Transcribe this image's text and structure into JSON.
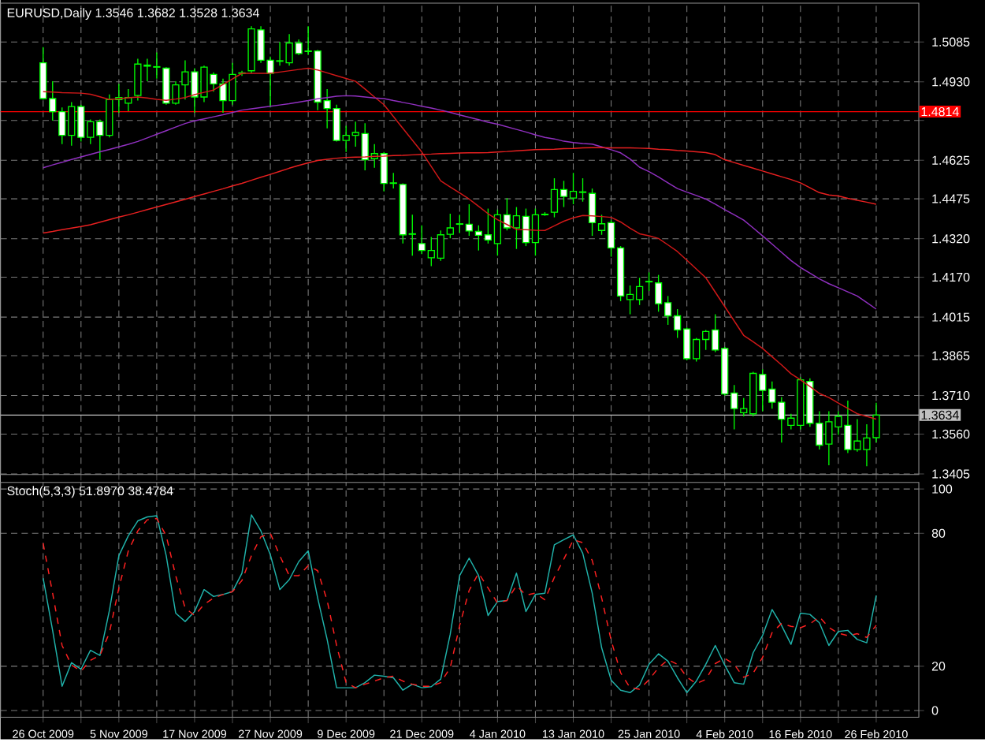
{
  "chart_data": [
    {
      "type": "candlestick",
      "title": "EURUSD,Daily 1.3546 1.3682 1.3528 1.3634",
      "color": "#00ff00",
      "categories": [
        null,
        null,
        null,
        null,
        null,
        null,
        null,
        null,
        null,
        null,
        null,
        null,
        null,
        null,
        null,
        null,
        null,
        null,
        null,
        null,
        null,
        null,
        null,
        null,
        null,
        null,
        null,
        null,
        null,
        null,
        null,
        null,
        null,
        null,
        null,
        null,
        null,
        null,
        null,
        null,
        null,
        null,
        null,
        null,
        null,
        null,
        null,
        null,
        null,
        null,
        null,
        null,
        null,
        null,
        null,
        null,
        null,
        null,
        null,
        null,
        null,
        null,
        null,
        null,
        null,
        null,
        null,
        null,
        null,
        null,
        null,
        null,
        null,
        null,
        null,
        null,
        null,
        null,
        null,
        null,
        null,
        null,
        null,
        null,
        null,
        null,
        null,
        null,
        null
      ],
      "ohlc": [
        [
          1.5004,
          1.5065,
          1.4861,
          1.4865
        ],
        [
          1.4865,
          1.4932,
          1.4779,
          1.4814
        ],
        [
          1.4814,
          1.483,
          1.4688,
          1.4722
        ],
        [
          1.4722,
          1.4851,
          1.4682,
          1.4834
        ],
        [
          1.4834,
          1.4841,
          1.4698,
          1.4714
        ],
        [
          1.4714,
          1.4784,
          1.4688,
          1.4775
        ],
        [
          1.4775,
          1.4784,
          1.4627,
          1.4722
        ],
        [
          1.4722,
          1.4881,
          1.4714,
          1.4861
        ],
        [
          1.4861,
          1.4922,
          1.481,
          1.4869
        ],
        [
          1.4847,
          1.4902,
          1.4816,
          1.4869
        ],
        [
          1.4877,
          1.502,
          1.4857,
          1.4999
        ],
        [
          1.4991,
          1.502,
          1.4932,
          1.4995
        ],
        [
          1.4987,
          1.5044,
          1.4942,
          1.4989
        ],
        [
          1.4983,
          1.4987,
          1.4841,
          1.4847
        ],
        [
          1.4847,
          1.4932,
          1.4841,
          1.4918
        ],
        [
          1.4918,
          1.5014,
          1.4861,
          1.4969
        ],
        [
          1.4969,
          1.4983,
          1.481,
          1.4871
        ],
        [
          1.4871,
          1.4993,
          1.4851,
          1.4987
        ],
        [
          1.4959,
          1.4967,
          1.4892,
          1.4922
        ],
        [
          1.4922,
          1.4942,
          1.481,
          1.4857
        ],
        [
          1.4857,
          1.5004,
          1.4841,
          1.4959
        ],
        [
          1.4963,
          1.4973,
          1.4953,
          1.4965
        ],
        [
          1.4973,
          1.5146,
          1.4963,
          1.5136
        ],
        [
          1.5132,
          1.5146,
          1.5004,
          1.5014
        ],
        [
          1.5014,
          1.5028,
          1.483,
          1.4963
        ],
        [
          1.501,
          1.5085,
          1.4993,
          1.5012
        ],
        [
          1.5004,
          1.5116,
          1.4993,
          1.5081
        ],
        [
          1.5081,
          1.5095,
          1.5034,
          1.504
        ],
        [
          1.5048,
          1.5146,
          1.5034,
          1.505
        ],
        [
          1.505,
          1.5054,
          1.482,
          1.4851
        ],
        [
          1.4857,
          1.4902,
          1.4749,
          1.4826
        ],
        [
          1.4826,
          1.4841,
          1.4698,
          1.4702
        ],
        [
          1.4702,
          1.4759,
          1.4657,
          1.4722
        ],
        [
          1.4722,
          1.4775,
          1.4678,
          1.4733
        ],
        [
          1.4729,
          1.4769,
          1.4586,
          1.4627
        ],
        [
          1.4631,
          1.4688,
          1.4596,
          1.4651
        ],
        [
          1.4651,
          1.4657,
          1.4504,
          1.4535
        ],
        [
          1.4535,
          1.4576,
          1.4515,
          1.4537
        ],
        [
          1.4531,
          1.4535,
          1.4301,
          1.4335
        ],
        [
          1.4337,
          1.4413,
          1.4254,
          1.4339
        ],
        [
          1.4301,
          1.4372,
          1.426,
          1.4274
        ],
        [
          1.4246,
          1.4327,
          1.4213,
          1.4274
        ],
        [
          1.4244,
          1.4352,
          1.4234,
          1.4335
        ],
        [
          1.4337,
          1.4417,
          1.4321,
          1.4362
        ],
        [
          1.4376,
          1.4413,
          1.4342,
          1.4378
        ],
        [
          1.4376,
          1.4454,
          1.4331,
          1.435
        ],
        [
          1.4348,
          1.4372,
          1.4274,
          1.4333
        ],
        [
          1.4335,
          1.4437,
          1.4301,
          1.4315
        ],
        [
          1.4301,
          1.4433,
          1.4254,
          1.4413
        ],
        [
          1.4413,
          1.4478,
          1.4352,
          1.4362
        ],
        [
          1.4362,
          1.4443,
          1.428,
          1.4409
        ],
        [
          1.4407,
          1.4437,
          1.4291,
          1.4305
        ],
        [
          1.4305,
          1.4437,
          1.4254,
          1.4413
        ],
        [
          1.4413,
          1.4423,
          1.4409,
          1.4415
        ],
        [
          1.4423,
          1.4555,
          1.4403,
          1.4511
        ],
        [
          1.4511,
          1.4545,
          1.4443,
          1.4484
        ],
        [
          1.4478,
          1.4576,
          1.4454,
          1.4504
        ],
        [
          1.45,
          1.4555,
          1.4464,
          1.4502
        ],
        [
          1.4496,
          1.4515,
          1.4331,
          1.4382
        ],
        [
          1.4352,
          1.4413,
          1.4335,
          1.4378
        ],
        [
          1.4382,
          1.4392,
          1.425,
          1.4284
        ],
        [
          1.4284,
          1.4291,
          1.4077,
          1.4097
        ],
        [
          1.4083,
          1.4138,
          1.4026,
          1.4103
        ],
        [
          1.4083,
          1.4168,
          1.4062,
          1.4134
        ],
        [
          1.4152,
          1.4189,
          1.4117,
          1.4154
        ],
        [
          1.4148,
          1.4179,
          1.4036,
          1.4067
        ],
        [
          1.4071,
          1.4097,
          1.3985,
          1.402
        ],
        [
          1.402,
          1.4046,
          1.3934,
          1.3965
        ],
        [
          1.3969,
          1.3975,
          1.3847,
          1.3853
        ],
        [
          1.3853,
          1.3934,
          1.3842,
          1.3928
        ],
        [
          1.3928,
          1.3965,
          1.3887,
          1.3959
        ],
        [
          1.3965,
          1.4026,
          1.3879,
          1.3887
        ],
        [
          1.3893,
          1.3899,
          1.371,
          1.3716
        ],
        [
          1.372,
          1.3751,
          1.3578,
          1.3659
        ],
        [
          1.3643,
          1.37,
          1.3629,
          1.3659
        ],
        [
          1.3639,
          1.3802,
          1.3629,
          1.3796
        ],
        [
          1.3792,
          1.3812,
          1.3649,
          1.373
        ],
        [
          1.3735,
          1.3765,
          1.3659,
          1.3684
        ],
        [
          1.3684,
          1.3704,
          1.3527,
          1.3618
        ],
        [
          1.3594,
          1.3639,
          1.3578,
          1.3622
        ],
        [
          1.3594,
          1.3781,
          1.3578,
          1.3771
        ],
        [
          1.3765,
          1.3777,
          1.3588,
          1.3602
        ],
        [
          1.3602,
          1.3649,
          1.35,
          1.3517
        ],
        [
          1.3521,
          1.3649,
          1.3439,
          1.3608
        ],
        [
          1.3588,
          1.3649,
          1.3557,
          1.3629
        ],
        [
          1.3594,
          1.369,
          1.3486,
          1.35
        ],
        [
          1.35,
          1.3618,
          1.3492,
          1.3533
        ],
        [
          1.35,
          1.3598,
          1.3435,
          1.3545
        ],
        [
          1.3546,
          1.3682,
          1.3528,
          1.3634
        ]
      ],
      "series": [
        {
          "type": "line",
          "color": "#d01818",
          "values": [
            1.4892,
            1.489,
            1.4888,
            1.4887,
            1.4886,
            1.4882,
            1.4872,
            1.4861,
            1.4864,
            1.4868,
            1.4871,
            1.4867,
            1.4862,
            1.4858,
            1.4863,
            1.4869,
            1.488,
            1.4889,
            1.4898,
            1.492,
            1.4941,
            1.4963,
            1.4963,
            1.4963,
            1.4963,
            1.4968,
            1.4973,
            1.4978,
            1.4983,
            1.4976,
            1.4965,
            1.4954,
            1.4943,
            1.4932,
            1.4902,
            1.4871,
            1.4841,
            1.4795,
            1.4749,
            1.4703,
            1.4657,
            1.4601,
            1.4545,
            1.4521,
            1.4498,
            1.4474,
            1.4446,
            1.4417,
            1.4394,
            1.4375,
            1.4356,
            1.4355,
            1.4353,
            1.4352,
            1.437,
            1.4388,
            1.4401,
            1.441,
            1.4409,
            1.4406,
            1.4403,
            1.4385,
            1.4361,
            1.4339,
            1.4331,
            1.4321,
            1.4296,
            1.427,
            1.4236,
            1.4202,
            1.4168,
            1.4112,
            1.4056,
            1.4,
            1.3944,
            1.3919,
            1.3893,
            1.3861,
            1.3829,
            1.3795,
            1.3771,
            1.3745,
            1.3718,
            1.3702,
            1.3681,
            1.366,
            1.3639,
            1.3629,
            1.3618
          ]
        },
        {
          "type": "line",
          "color": "#9030c0",
          "values": [
            1.4596,
            1.4607,
            1.4617,
            1.4628,
            1.4638,
            1.4648,
            1.4658,
            1.4667,
            1.4677,
            1.4687,
            1.4698,
            1.4712,
            1.4726,
            1.474,
            1.4754,
            1.4768,
            1.4778,
            1.4786,
            1.4794,
            1.4802,
            1.4811,
            1.482,
            1.4825,
            1.483,
            1.4835,
            1.484,
            1.4845,
            1.4851,
            1.4857,
            1.4864,
            1.4869,
            1.4874,
            1.4876,
            1.4875,
            1.4871,
            1.4867,
            1.4865,
            1.4857,
            1.485,
            1.4843,
            1.4835,
            1.4828,
            1.482,
            1.4811,
            1.4801,
            1.4792,
            1.4783,
            1.4773,
            1.4765,
            1.4755,
            1.4745,
            1.4735,
            1.4724,
            1.4714,
            1.4708,
            1.4699,
            1.4694,
            1.469,
            1.4688,
            1.4677,
            1.4666,
            1.4654,
            1.463,
            1.4598,
            1.4581,
            1.456,
            1.4537,
            1.4515,
            1.4501,
            1.4488,
            1.4474,
            1.4454,
            1.4433,
            1.4413,
            1.4392,
            1.4362,
            1.4331,
            1.4299,
            1.4267,
            1.4235,
            1.4208,
            1.4186,
            1.4164,
            1.4145,
            1.4129,
            1.4113,
            1.4097,
            1.4072,
            1.4046
          ]
        },
        {
          "type": "line",
          "color": "#e82020",
          "values": [
            1.4342,
            1.4348,
            1.4355,
            1.4361,
            1.4367,
            1.4374,
            1.4384,
            1.4394,
            1.4404,
            1.4413,
            1.4423,
            1.4433,
            1.4443,
            1.4453,
            1.4463,
            1.4473,
            1.4484,
            1.4494,
            1.4504,
            1.4514,
            1.4525,
            1.4535,
            1.4547,
            1.4559,
            1.457,
            1.4582,
            1.4594,
            1.4605,
            1.4615,
            1.4624,
            1.4629,
            1.4633,
            1.4636,
            1.4637,
            1.4638,
            1.464,
            1.4641,
            1.4643,
            1.4644,
            1.4646,
            1.4648,
            1.4649,
            1.4651,
            1.4652,
            1.4653,
            1.4654,
            1.4654,
            1.4655,
            1.4657,
            1.4659,
            1.4662,
            1.4664,
            1.4666,
            1.4667,
            1.4668,
            1.467,
            1.4671,
            1.4673,
            1.4674,
            1.4674,
            1.4673,
            1.4673,
            1.4673,
            1.4672,
            1.4671,
            1.4668,
            1.4666,
            1.4663,
            1.4661,
            1.4658,
            1.4655,
            1.4647,
            1.4627,
            1.4616,
            1.4605,
            1.4594,
            1.4583,
            1.4572,
            1.4561,
            1.455,
            1.4537,
            1.4518,
            1.4499,
            1.449,
            1.4486,
            1.4477,
            1.4469,
            1.4462,
            1.4454
          ]
        }
      ],
      "ylim": [
        1.3403,
        1.5236
      ],
      "yticks": [
        {
          "value": 1.3405,
          "label": "1.3405"
        },
        {
          "value": 1.356,
          "label": "1.3560"
        },
        {
          "value": 1.371,
          "label": "1.3710"
        },
        {
          "value": 1.3865,
          "label": "1.3865"
        },
        {
          "value": 1.4015,
          "label": "1.4015"
        },
        {
          "value": 1.417,
          "label": "1.4170"
        },
        {
          "value": 1.432,
          "label": "1.4320"
        },
        {
          "value": 1.4475,
          "label": "1.4475"
        },
        {
          "value": 1.4625,
          "label": "1.4625"
        },
        {
          "value": 1.478,
          "label": null
        },
        {
          "value": 1.493,
          "label": "1.4930"
        },
        {
          "value": 1.5085,
          "label": "1.5085"
        }
      ],
      "ref_lines": [
        {
          "axis": "y",
          "value": 1.4814,
          "label": "1.4814",
          "color": "#ff0000"
        },
        {
          "axis": "y",
          "value": 1.3634,
          "label": "1.3634",
          "color": "#c0c0c0"
        }
      ],
      "grid": true,
      "tick_labels": "y"
    },
    {
      "type": "line",
      "title": "Stoch(5,3,3) 51.8970 38.4784",
      "categories": [
        "26 Oct 2009",
        null,
        null,
        null,
        null,
        null,
        null,
        null,
        "5 Nov 2009",
        null,
        null,
        null,
        null,
        null,
        null,
        null,
        "17 Nov 2009",
        null,
        null,
        null,
        null,
        null,
        null,
        null,
        "27 Nov 2009",
        null,
        null,
        null,
        null,
        null,
        null,
        null,
        "9 Dec 2009",
        null,
        null,
        null,
        null,
        null,
        null,
        null,
        "21 Dec 2009",
        null,
        null,
        null,
        null,
        null,
        null,
        null,
        "4 Jan 2010",
        null,
        null,
        null,
        null,
        null,
        null,
        null,
        "13 Jan 2010",
        null,
        null,
        null,
        null,
        null,
        null,
        null,
        "25 Jan 2010",
        null,
        null,
        null,
        null,
        null,
        null,
        null,
        "4 Feb 2010",
        null,
        null,
        null,
        null,
        null,
        null,
        null,
        "16 Feb 2010",
        null,
        null,
        null,
        null,
        null,
        null,
        null,
        "26 Feb 2010"
      ],
      "series": [
        {
          "color": "#20b2aa",
          "line_style": "solid",
          "values": [
            59.8,
            36.2,
            11.0,
            21.6,
            18.7,
            27.2,
            24.9,
            45.2,
            69.9,
            78.9,
            85.6,
            87.4,
            87.9,
            69.9,
            44.0,
            40.2,
            44.7,
            54.6,
            51.5,
            52.4,
            53.7,
            62.0,
            88.3,
            81.1,
            70.3,
            54.6,
            59.1,
            67.2,
            72.1,
            50.8,
            32.1,
            10.3,
            10.3,
            10.3,
            12.6,
            16.0,
            15.5,
            14.8,
            9.2,
            11.9,
            10.3,
            10.8,
            14.2,
            34.4,
            60.9,
            68.8,
            60.9,
            42.9,
            49.2,
            49.7,
            62.0,
            44.7,
            52.4,
            53.0,
            74.8,
            77.1,
            79.3,
            71.0,
            53.0,
            28.3,
            13.7,
            9.2,
            8.1,
            11.5,
            20.9,
            25.6,
            22.3,
            14.8,
            8.1,
            13.3,
            20.9,
            29.4,
            20.5,
            12.6,
            11.9,
            26.1,
            33.9,
            45.6,
            38.4,
            29.9,
            44.0,
            43.4,
            39.6,
            29.4,
            35.7,
            36.2,
            32.1,
            30.6,
            51.9
          ]
        },
        {
          "color": "#ff2020",
          "line_style": "dashed",
          "values": [
            75.5,
            53.0,
            29.4,
            20.5,
            17.8,
            22.7,
            24.9,
            35.1,
            55.3,
            72.1,
            81.1,
            86.1,
            86.7,
            78.9,
            60.9,
            46.3,
            42.9,
            47.9,
            50.8,
            52.4,
            53.7,
            58.7,
            69.9,
            78.4,
            80.0,
            69.9,
            60.9,
            60.9,
            65.4,
            63.1,
            49.7,
            29.4,
            12.6,
            10.3,
            11.9,
            13.3,
            14.8,
            15.5,
            13.3,
            11.9,
            11.0,
            11.0,
            12.6,
            19.3,
            38.4,
            54.2,
            62.0,
            55.3,
            48.5,
            49.7,
            56.4,
            52.1,
            53.0,
            50.0,
            60.1,
            68.3,
            77.1,
            75.8,
            67.8,
            50.8,
            31.7,
            17.1,
            10.3,
            9.6,
            13.9,
            19.3,
            22.9,
            20.9,
            15.1,
            12.1,
            14.1,
            21.2,
            23.6,
            20.8,
            15.0,
            16.9,
            24.0,
            35.2,
            39.3,
            38.0,
            37.4,
            39.1,
            42.3,
            37.5,
            34.9,
            33.8,
            34.7,
            33.0,
            38.5
          ]
        }
      ],
      "ylim": [
        -3,
        103
      ],
      "yticks": [
        0,
        20,
        80,
        100
      ],
      "grid": true
    }
  ]
}
